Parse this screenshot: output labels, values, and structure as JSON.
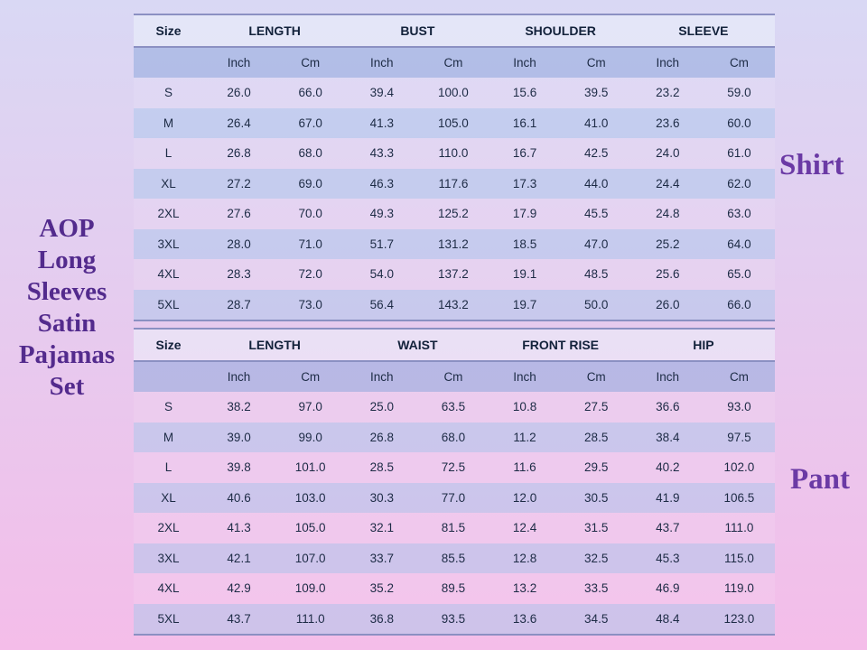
{
  "colors": {
    "bg-top": "#d9d8f4",
    "bg-bottom": "#f4bde9",
    "title-color": "#532b8d",
    "label-color": "#6b3aa5",
    "line-color": "#8b90c2",
    "header-text": "#12213a",
    "cell-text": "#1d2b45",
    "header-fill": "rgba(237,245,252,0.50)",
    "subheader-fill": "rgba(148,172,222,0.58)",
    "band-fill": "rgba(170,200,235,0.50)"
  },
  "title": {
    "text": "AOP Long Sleeves Satin Pajamas Set",
    "lines": [
      "AOP",
      "Long",
      "Sleeves",
      "Satin",
      "Pajamas",
      "Set"
    ]
  },
  "side_labels": {
    "shirt": "Shirt",
    "pant": "Pant"
  },
  "tables": [
    {
      "name": "shirt",
      "size_header": "Size",
      "measure_headers": [
        "LENGTH",
        "BUST",
        "SHOULDER",
        "SLEEVE"
      ],
      "unit_headers": [
        "Inch",
        "Cm"
      ],
      "rows": [
        {
          "size": "S",
          "values": [
            "26.0",
            "66.0",
            "39.4",
            "100.0",
            "15.6",
            "39.5",
            "23.2",
            "59.0"
          ]
        },
        {
          "size": "M",
          "values": [
            "26.4",
            "67.0",
            "41.3",
            "105.0",
            "16.1",
            "41.0",
            "23.6",
            "60.0"
          ]
        },
        {
          "size": "L",
          "values": [
            "26.8",
            "68.0",
            "43.3",
            "110.0",
            "16.7",
            "42.5",
            "24.0",
            "61.0"
          ]
        },
        {
          "size": "XL",
          "values": [
            "27.2",
            "69.0",
            "46.3",
            "117.6",
            "17.3",
            "44.0",
            "24.4",
            "62.0"
          ]
        },
        {
          "size": "2XL",
          "values": [
            "27.6",
            "70.0",
            "49.3",
            "125.2",
            "17.9",
            "45.5",
            "24.8",
            "63.0"
          ]
        },
        {
          "size": "3XL",
          "values": [
            "28.0",
            "71.0",
            "51.7",
            "131.2",
            "18.5",
            "47.0",
            "25.2",
            "64.0"
          ]
        },
        {
          "size": "4XL",
          "values": [
            "28.3",
            "72.0",
            "54.0",
            "137.2",
            "19.1",
            "48.5",
            "25.6",
            "65.0"
          ]
        },
        {
          "size": "5XL",
          "values": [
            "28.7",
            "73.0",
            "56.4",
            "143.2",
            "19.7",
            "50.0",
            "26.0",
            "66.0"
          ]
        }
      ]
    },
    {
      "name": "pant",
      "size_header": "Size",
      "measure_headers": [
        "LENGTH",
        "WAIST",
        "FRONT RISE",
        "HIP"
      ],
      "unit_headers": [
        "Inch",
        "Cm"
      ],
      "rows": [
        {
          "size": "S",
          "values": [
            "38.2",
            "97.0",
            "25.0",
            "63.5",
            "10.8",
            "27.5",
            "36.6",
            "93.0"
          ]
        },
        {
          "size": "M",
          "values": [
            "39.0",
            "99.0",
            "26.8",
            "68.0",
            "11.2",
            "28.5",
            "38.4",
            "97.5"
          ]
        },
        {
          "size": "L",
          "values": [
            "39.8",
            "101.0",
            "28.5",
            "72.5",
            "11.6",
            "29.5",
            "40.2",
            "102.0"
          ]
        },
        {
          "size": "XL",
          "values": [
            "40.6",
            "103.0",
            "30.3",
            "77.0",
            "12.0",
            "30.5",
            "41.9",
            "106.5"
          ]
        },
        {
          "size": "2XL",
          "values": [
            "41.3",
            "105.0",
            "32.1",
            "81.5",
            "12.4",
            "31.5",
            "43.7",
            "111.0"
          ]
        },
        {
          "size": "3XL",
          "values": [
            "42.1",
            "107.0",
            "33.7",
            "85.5",
            "12.8",
            "32.5",
            "45.3",
            "115.0"
          ]
        },
        {
          "size": "4XL",
          "values": [
            "42.9",
            "109.0",
            "35.2",
            "89.5",
            "13.2",
            "33.5",
            "46.9",
            "119.0"
          ]
        },
        {
          "size": "5XL",
          "values": [
            "43.7",
            "111.0",
            "36.8",
            "93.5",
            "13.6",
            "34.5",
            "48.4",
            "123.0"
          ]
        }
      ]
    }
  ]
}
